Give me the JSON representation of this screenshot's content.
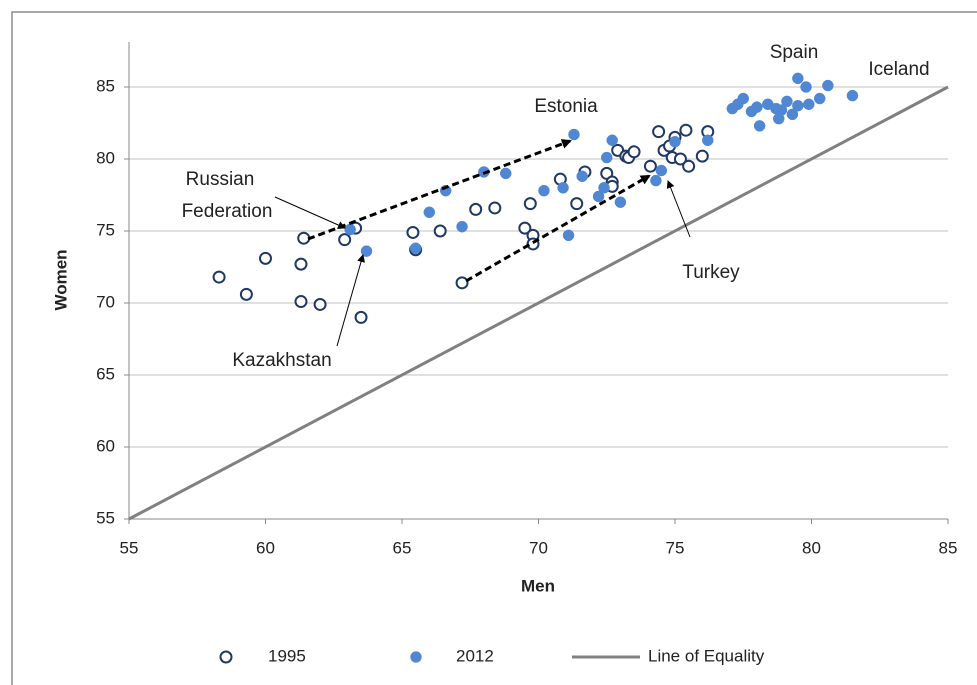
{
  "chart_data": {
    "type": "scatter",
    "x_label": "Men",
    "y_label": "Women",
    "xlim": [
      55,
      85
    ],
    "ylim": [
      55,
      85
    ],
    "xticks": [
      55,
      60,
      65,
      70,
      75,
      80,
      85
    ],
    "yticks": [
      55,
      60,
      65,
      70,
      75,
      80,
      85
    ],
    "grid": true,
    "legend": "bottom",
    "series": [
      {
        "name": "1995",
        "color": "#1f3864",
        "marker": "open",
        "x": [
          58.3,
          59.3,
          60.0,
          61.3,
          61.3,
          62.0,
          61.4,
          62.9,
          63.3,
          63.5,
          65.4,
          65.5,
          66.4,
          67.2,
          67.7,
          68.4,
          69.5,
          69.7,
          69.8,
          69.8,
          70.8,
          71.4,
          71.7,
          72.5,
          72.7,
          72.7,
          72.9,
          73.2,
          73.3,
          73.5,
          74.1,
          74.4,
          74.6,
          74.8,
          74.9,
          75.0,
          75.2,
          75.4,
          75.5,
          76.0,
          76.2
        ],
        "y": [
          71.8,
          70.6,
          73.1,
          72.7,
          70.1,
          69.9,
          74.5,
          74.4,
          75.2,
          69.0,
          74.9,
          73.7,
          75.0,
          71.4,
          76.5,
          76.6,
          75.2,
          76.9,
          74.7,
          74.1,
          78.6,
          76.9,
          79.1,
          79.0,
          78.4,
          78.1,
          80.6,
          80.2,
          80.1,
          80.5,
          79.5,
          81.9,
          80.6,
          80.9,
          80.1,
          81.5,
          80.0,
          82.0,
          79.5,
          80.2,
          81.9
        ]
      },
      {
        "name": "2012",
        "color": "#4f87d3",
        "marker": "filled",
        "x": [
          63.1,
          63.7,
          65.5,
          66.0,
          66.6,
          67.2,
          68.0,
          68.8,
          70.2,
          70.9,
          71.1,
          71.3,
          71.6,
          72.2,
          72.4,
          72.5,
          72.7,
          73.0,
          74.3,
          74.5,
          75.0,
          76.2,
          77.1,
          77.3,
          77.5,
          77.8,
          78.0,
          78.1,
          78.4,
          78.7,
          78.8,
          78.9,
          79.1,
          79.3,
          79.5,
          79.5,
          79.8,
          79.9,
          80.3,
          80.6,
          81.5
        ],
        "y": [
          75.1,
          73.6,
          73.8,
          76.3,
          77.8,
          75.3,
          79.1,
          79.0,
          77.8,
          78.0,
          74.7,
          81.7,
          78.8,
          77.4,
          78.0,
          80.1,
          81.3,
          77.0,
          78.5,
          79.2,
          81.2,
          81.3,
          83.5,
          83.8,
          84.2,
          83.3,
          83.6,
          82.3,
          83.8,
          83.5,
          82.8,
          83.4,
          84.0,
          83.1,
          85.6,
          83.7,
          85.0,
          83.8,
          84.2,
          85.1,
          84.4
        ]
      },
      {
        "name": "Line of Equality",
        "color": "#808080",
        "marker": "line",
        "x": [
          55,
          85
        ],
        "y": [
          55,
          85
        ]
      }
    ],
    "annotations": [
      {
        "text": [
          "Spain"
        ]
      },
      {
        "text": [
          "Iceland"
        ]
      },
      {
        "text": [
          "Estonia"
        ]
      },
      {
        "text": [
          "Russian",
          "Federation"
        ]
      },
      {
        "text": [
          "Kazakhstan"
        ]
      },
      {
        "text": [
          "Turkey"
        ]
      }
    ]
  }
}
